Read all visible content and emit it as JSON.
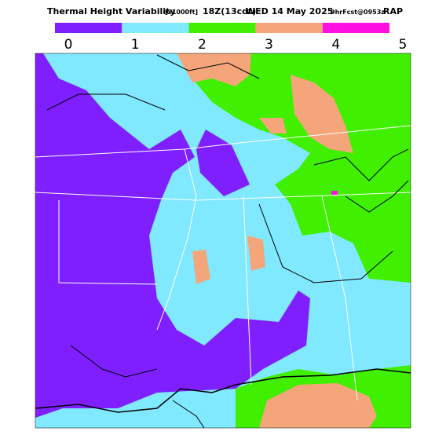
{
  "header": {
    "title": "Thermal Height Variability",
    "units": "[x1000ft]",
    "time": "18Z(13cdt)",
    "date": "WED 14 May 2025",
    "forecast": "9hrFcst@0953z",
    "model": "RAP"
  },
  "legend": {
    "colors": [
      "#7f1fff",
      "#80e8ff",
      "#40f000",
      "#f4a67a",
      "#ff10e0"
    ],
    "labels": [
      0,
      1,
      2,
      3,
      4,
      5
    ]
  }
}
